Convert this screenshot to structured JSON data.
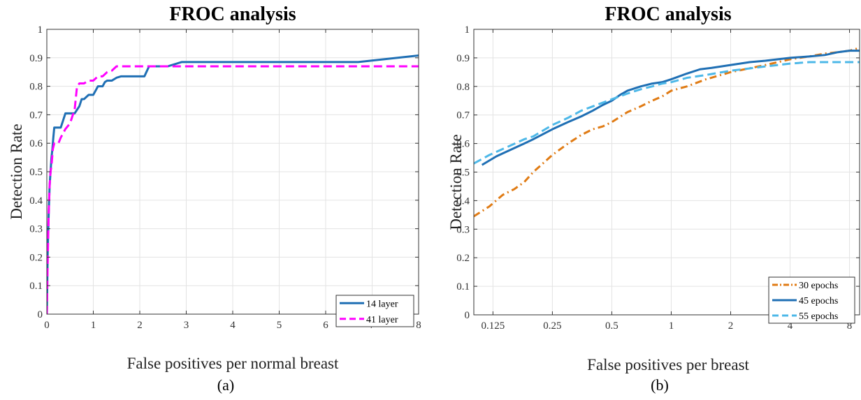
{
  "chart_data": [
    {
      "type": "line",
      "title": "FROC analysis",
      "xlabel": "False positives per normal breast",
      "ylabel": "Detection Rate",
      "panel_label": "(a)",
      "xscale": "linear",
      "xlim": [
        0,
        8
      ],
      "ylim": [
        0,
        1
      ],
      "xticks": [
        0,
        1,
        2,
        3,
        4,
        5,
        6,
        7,
        8
      ],
      "xtick_labels": [
        "0",
        "1",
        "2",
        "3",
        "4",
        "5",
        "6",
        "7",
        "8"
      ],
      "yticks": [
        0,
        0.1,
        0.2,
        0.3,
        0.4,
        0.5,
        0.6,
        0.7,
        0.8,
        0.9,
        1
      ],
      "ytick_labels": [
        "0",
        "0.1",
        "0.2",
        "0.3",
        "0.4",
        "0.5",
        "0.6",
        "0.7",
        "0.8",
        "0.9",
        "1"
      ],
      "grid": true,
      "legend_position": "bottom-right",
      "series": [
        {
          "name": "14 layer",
          "color": "#1f6fb4",
          "dash": "solid",
          "x": [
            0,
            0.02,
            0.04,
            0.06,
            0.08,
            0.1,
            0.12,
            0.14,
            0.16,
            0.18,
            0.2,
            0.3,
            0.35,
            0.4,
            0.5,
            0.55,
            0.6,
            0.7,
            0.75,
            0.8,
            0.9,
            1.0,
            1.1,
            1.2,
            1.25,
            1.3,
            1.4,
            1.5,
            1.6,
            2.1,
            2.2,
            2.6,
            2.9,
            6.7,
            8.0
          ],
          "y": [
            0,
            0.23,
            0.35,
            0.45,
            0.5,
            0.55,
            0.58,
            0.62,
            0.655,
            0.655,
            0.655,
            0.655,
            0.68,
            0.705,
            0.705,
            0.705,
            0.705,
            0.73,
            0.755,
            0.755,
            0.77,
            0.77,
            0.8,
            0.8,
            0.815,
            0.82,
            0.82,
            0.83,
            0.835,
            0.835,
            0.87,
            0.87,
            0.885,
            0.885,
            0.908
          ]
        },
        {
          "name": "41 layer",
          "color": "#ff00ff",
          "dash": "dashed",
          "x": [
            0,
            0.02,
            0.04,
            0.06,
            0.08,
            0.1,
            0.13,
            0.16,
            0.2,
            0.25,
            0.3,
            0.4,
            0.5,
            0.6,
            0.65,
            0.7,
            0.8,
            0.9,
            1.0,
            1.1,
            1.2,
            1.3,
            1.4,
            1.5,
            2.0,
            8.0
          ],
          "y": [
            0,
            0.2,
            0.35,
            0.45,
            0.5,
            0.52,
            0.58,
            0.6,
            0.6,
            0.6,
            0.62,
            0.65,
            0.67,
            0.72,
            0.8,
            0.81,
            0.81,
            0.82,
            0.82,
            0.835,
            0.835,
            0.85,
            0.855,
            0.87,
            0.87,
            0.87
          ]
        }
      ]
    },
    {
      "type": "line",
      "title": "FROC analysis",
      "xlabel": "False positives per breast",
      "ylabel": "Detection Rate",
      "panel_label": "(b)",
      "xscale": "log",
      "xlim": [
        0.1,
        9
      ],
      "ylim": [
        0,
        1
      ],
      "xticks": [
        0.125,
        0.25,
        0.5,
        1,
        2,
        4,
        8
      ],
      "xtick_labels": [
        "0.125",
        "0.25",
        "0.5",
        "1",
        "2",
        "4",
        "8"
      ],
      "yticks": [
        0,
        0.1,
        0.2,
        0.3,
        0.4,
        0.5,
        0.6,
        0.7,
        0.8,
        0.9,
        1
      ],
      "ytick_labels": [
        "0",
        "0.1",
        "0.2",
        "0.3",
        "0.4",
        "0.5",
        "0.6",
        "0.7",
        "0.8",
        "0.9",
        "1"
      ],
      "grid": true,
      "legend_position": "bottom-right",
      "series": [
        {
          "name": "30 epochs",
          "color": "#e07b14",
          "dash": "dashdot",
          "x": [
            0.1,
            0.12,
            0.14,
            0.16,
            0.18,
            0.2,
            0.25,
            0.3,
            0.35,
            0.4,
            0.45,
            0.5,
            0.6,
            0.7,
            0.8,
            0.9,
            1.0,
            1.2,
            1.5,
            2.0,
            3.0,
            4.0,
            5.0,
            6.0,
            7.0,
            8.0,
            9.0
          ],
          "y": [
            0.345,
            0.38,
            0.42,
            0.44,
            0.465,
            0.5,
            0.56,
            0.6,
            0.63,
            0.65,
            0.66,
            0.675,
            0.71,
            0.73,
            0.75,
            0.765,
            0.785,
            0.8,
            0.825,
            0.85,
            0.875,
            0.895,
            0.905,
            0.915,
            0.92,
            0.925,
            0.935
          ]
        },
        {
          "name": "45 epochs",
          "color": "#1f6fb4",
          "dash": "solid",
          "x": [
            0.11,
            0.13,
            0.15,
            0.18,
            0.2,
            0.25,
            0.3,
            0.35,
            0.4,
            0.45,
            0.5,
            0.55,
            0.6,
            0.7,
            0.8,
            0.9,
            1.0,
            1.2,
            1.4,
            1.6,
            2.0,
            2.5,
            3.0,
            4.0,
            5.0,
            6.0,
            7.0,
            8.0,
            9.0
          ],
          "y": [
            0.525,
            0.555,
            0.575,
            0.6,
            0.615,
            0.65,
            0.675,
            0.695,
            0.715,
            0.735,
            0.75,
            0.77,
            0.785,
            0.8,
            0.81,
            0.815,
            0.825,
            0.845,
            0.86,
            0.865,
            0.875,
            0.885,
            0.89,
            0.9,
            0.905,
            0.91,
            0.92,
            0.925,
            0.925
          ]
        },
        {
          "name": "55 epochs",
          "color": "#4db8e8",
          "dash": "dashed",
          "x": [
            0.1,
            0.12,
            0.15,
            0.18,
            0.2,
            0.25,
            0.3,
            0.35,
            0.4,
            0.5,
            0.6,
            0.7,
            0.8,
            0.9,
            1.0,
            1.2,
            1.5,
            2.0,
            3.0,
            4.0,
            5.0,
            6.0,
            7.0,
            8.0,
            9.0
          ],
          "y": [
            0.53,
            0.56,
            0.59,
            0.615,
            0.625,
            0.665,
            0.69,
            0.715,
            0.73,
            0.755,
            0.775,
            0.79,
            0.8,
            0.81,
            0.815,
            0.83,
            0.84,
            0.855,
            0.87,
            0.88,
            0.885,
            0.885,
            0.885,
            0.885,
            0.885
          ]
        }
      ]
    }
  ]
}
